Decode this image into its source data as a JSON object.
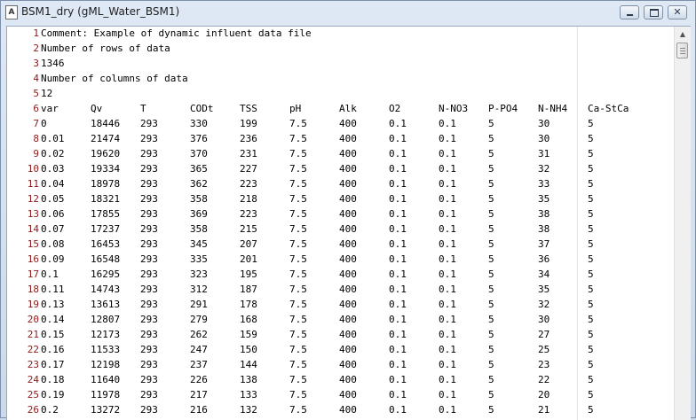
{
  "window": {
    "title": "BSM1_dry  (gML_Water_BSM1)",
    "icon": "text-editor-icon",
    "min_glyph": "minimize-icon",
    "max_glyph": "maximize-icon",
    "close_glyph": "✕"
  },
  "editor": {
    "header_lines": [
      {
        "n": "1",
        "text": "Comment: Example of dynamic influent data file"
      },
      {
        "n": "2",
        "text": "Number of rows of data"
      },
      {
        "n": "3",
        "text": "1346"
      },
      {
        "n": "4",
        "text": "Number of columns of data"
      },
      {
        "n": "5",
        "text": "12"
      }
    ],
    "columns_line_number": "6",
    "columns": [
      "var",
      "Qv",
      "T",
      "CODt",
      "TSS",
      "pH",
      "Alk",
      "O2",
      "N-NO3",
      "P-PO4",
      "N-NH4",
      "Ca-StCa"
    ],
    "rows": [
      {
        "n": "7",
        "cells": [
          "0",
          "18446",
          "293",
          "330",
          "199",
          "7.5",
          "400",
          "0.1",
          "0.1",
          "5",
          "30",
          "5"
        ]
      },
      {
        "n": "8",
        "cells": [
          "0.01",
          "21474",
          "293",
          "376",
          "236",
          "7.5",
          "400",
          "0.1",
          "0.1",
          "5",
          "30",
          "5"
        ]
      },
      {
        "n": "9",
        "cells": [
          "0.02",
          "19620",
          "293",
          "370",
          "231",
          "7.5",
          "400",
          "0.1",
          "0.1",
          "5",
          "31",
          "5"
        ]
      },
      {
        "n": "10",
        "cells": [
          "0.03",
          "19334",
          "293",
          "365",
          "227",
          "7.5",
          "400",
          "0.1",
          "0.1",
          "5",
          "32",
          "5"
        ]
      },
      {
        "n": "11",
        "cells": [
          "0.04",
          "18978",
          "293",
          "362",
          "223",
          "7.5",
          "400",
          "0.1",
          "0.1",
          "5",
          "33",
          "5"
        ]
      },
      {
        "n": "12",
        "cells": [
          "0.05",
          "18321",
          "293",
          "358",
          "218",
          "7.5",
          "400",
          "0.1",
          "0.1",
          "5",
          "35",
          "5"
        ]
      },
      {
        "n": "13",
        "cells": [
          "0.06",
          "17855",
          "293",
          "369",
          "223",
          "7.5",
          "400",
          "0.1",
          "0.1",
          "5",
          "38",
          "5"
        ]
      },
      {
        "n": "14",
        "cells": [
          "0.07",
          "17237",
          "293",
          "358",
          "215",
          "7.5",
          "400",
          "0.1",
          "0.1",
          "5",
          "38",
          "5"
        ]
      },
      {
        "n": "15",
        "cells": [
          "0.08",
          "16453",
          "293",
          "345",
          "207",
          "7.5",
          "400",
          "0.1",
          "0.1",
          "5",
          "37",
          "5"
        ]
      },
      {
        "n": "16",
        "cells": [
          "0.09",
          "16548",
          "293",
          "335",
          "201",
          "7.5",
          "400",
          "0.1",
          "0.1",
          "5",
          "36",
          "5"
        ]
      },
      {
        "n": "17",
        "cells": [
          "0.1",
          "16295",
          "293",
          "323",
          "195",
          "7.5",
          "400",
          "0.1",
          "0.1",
          "5",
          "34",
          "5"
        ]
      },
      {
        "n": "18",
        "cells": [
          "0.11",
          "14743",
          "293",
          "312",
          "187",
          "7.5",
          "400",
          "0.1",
          "0.1",
          "5",
          "35",
          "5"
        ]
      },
      {
        "n": "19",
        "cells": [
          "0.13",
          "13613",
          "293",
          "291",
          "178",
          "7.5",
          "400",
          "0.1",
          "0.1",
          "5",
          "32",
          "5"
        ]
      },
      {
        "n": "20",
        "cells": [
          "0.14",
          "12807",
          "293",
          "279",
          "168",
          "7.5",
          "400",
          "0.1",
          "0.1",
          "5",
          "30",
          "5"
        ]
      },
      {
        "n": "21",
        "cells": [
          "0.15",
          "12173",
          "293",
          "262",
          "159",
          "7.5",
          "400",
          "0.1",
          "0.1",
          "5",
          "27",
          "5"
        ]
      },
      {
        "n": "22",
        "cells": [
          "0.16",
          "11533",
          "293",
          "247",
          "150",
          "7.5",
          "400",
          "0.1",
          "0.1",
          "5",
          "25",
          "5"
        ]
      },
      {
        "n": "23",
        "cells": [
          "0.17",
          "12198",
          "293",
          "237",
          "144",
          "7.5",
          "400",
          "0.1",
          "0.1",
          "5",
          "23",
          "5"
        ]
      },
      {
        "n": "24",
        "cells": [
          "0.18",
          "11640",
          "293",
          "226",
          "138",
          "7.5",
          "400",
          "0.1",
          "0.1",
          "5",
          "22",
          "5"
        ]
      },
      {
        "n": "25",
        "cells": [
          "0.19",
          "11978",
          "293",
          "217",
          "133",
          "7.5",
          "400",
          "0.1",
          "0.1",
          "5",
          "20",
          "5"
        ]
      },
      {
        "n": "26",
        "cells": [
          "0.2",
          "13272",
          "293",
          "216",
          "132",
          "7.5",
          "400",
          "0.1",
          "0.1",
          "5",
          "21",
          "5"
        ]
      }
    ]
  },
  "scrollbar": {
    "up_arrow": "▲"
  }
}
